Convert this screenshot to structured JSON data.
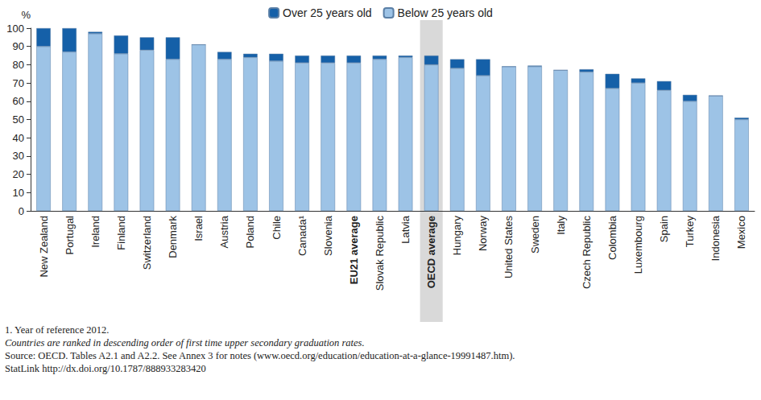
{
  "chart_data": {
    "type": "bar",
    "stacked": true,
    "ylabel": "%",
    "categories": [
      "New Zealand",
      "Portugal",
      "Ireland",
      "Finland",
      "Switzerland",
      "Denmark",
      "Israel",
      "Austria",
      "Poland",
      "Chile",
      "Canada¹",
      "Slovenia",
      "EU21 average",
      "Slovak Republic",
      "Latvia",
      "OECD average",
      "Hungary",
      "Norway",
      "United States",
      "Sweden",
      "Italy",
      "Czech Republic",
      "Colombia",
      "Luxembourg",
      "Spain",
      "Turkey",
      "Indonesia",
      "Mexico"
    ],
    "series": [
      {
        "name": "Below 25 years old",
        "color": "#9dc3e6",
        "values": [
          90,
          87,
          97,
          86,
          88,
          83,
          91,
          83,
          84,
          82,
          81,
          81,
          81,
          83,
          84,
          80,
          78,
          74,
          79,
          79,
          77,
          76,
          67,
          70,
          66,
          60,
          63,
          50
        ]
      },
      {
        "name": "Over 25 years old",
        "color": "#1560a8",
        "values": [
          10,
          13,
          1,
          10,
          7,
          12,
          0,
          4,
          2,
          4,
          4,
          4,
          4,
          2,
          1,
          5,
          5,
          9,
          0,
          0.5,
          0,
          1.5,
          8,
          2.5,
          5,
          3.5,
          0,
          1
        ]
      }
    ],
    "ylim": [
      0,
      100
    ],
    "yticks": [
      0,
      10,
      20,
      30,
      40,
      50,
      60,
      70,
      80,
      90,
      100
    ],
    "grid": false,
    "legend": "top",
    "annotations": [
      "1. Year of reference 2012.",
      "Countries are ranked in descending order of first time upper secondary graduation rates.",
      "Source: OECD. Tables A2.1 and A2.2. See Annex 3 for notes (www.oecd.org/education/education-at-a-glance-19991487.htm).",
      "StatLink http://dx.doi.org/10.1787/888933283420"
    ]
  }
}
